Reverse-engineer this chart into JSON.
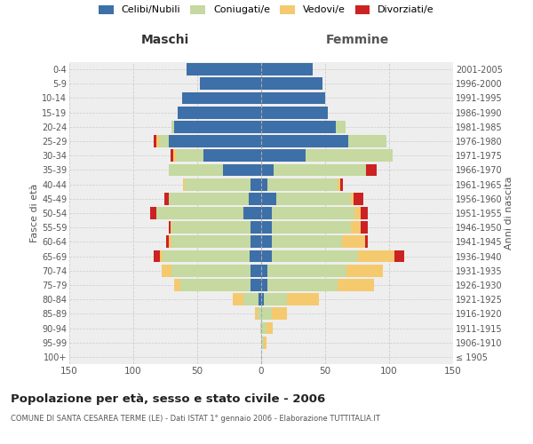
{
  "age_groups": [
    "100+",
    "95-99",
    "90-94",
    "85-89",
    "80-84",
    "75-79",
    "70-74",
    "65-69",
    "60-64",
    "55-59",
    "50-54",
    "45-49",
    "40-44",
    "35-39",
    "30-34",
    "25-29",
    "20-24",
    "15-19",
    "10-14",
    "5-9",
    "0-4"
  ],
  "birth_years": [
    "≤ 1905",
    "1906-1910",
    "1911-1915",
    "1916-1920",
    "1921-1925",
    "1926-1930",
    "1931-1935",
    "1936-1940",
    "1941-1945",
    "1946-1950",
    "1951-1955",
    "1956-1960",
    "1961-1965",
    "1966-1970",
    "1971-1975",
    "1976-1980",
    "1981-1985",
    "1986-1990",
    "1991-1995",
    "1996-2000",
    "2001-2005"
  ],
  "maschi": {
    "celibi": [
      0,
      0,
      0,
      0,
      2,
      8,
      8,
      9,
      8,
      8,
      14,
      10,
      8,
      30,
      45,
      72,
      68,
      65,
      62,
      48,
      58
    ],
    "coniugati": [
      0,
      0,
      1,
      3,
      12,
      55,
      62,
      68,
      62,
      62,
      68,
      62,
      52,
      42,
      22,
      8,
      2,
      0,
      0,
      0,
      0
    ],
    "vedovi": [
      0,
      0,
      0,
      2,
      8,
      5,
      8,
      2,
      2,
      1,
      0,
      0,
      1,
      0,
      2,
      2,
      0,
      0,
      0,
      0,
      0
    ],
    "divorziati": [
      0,
      0,
      0,
      0,
      0,
      0,
      0,
      5,
      2,
      1,
      5,
      4,
      0,
      0,
      2,
      2,
      0,
      0,
      0,
      0,
      0
    ]
  },
  "femmine": {
    "nubili": [
      0,
      0,
      0,
      0,
      2,
      5,
      5,
      8,
      8,
      8,
      8,
      12,
      5,
      10,
      35,
      68,
      58,
      52,
      50,
      48,
      40
    ],
    "coniugate": [
      0,
      2,
      4,
      8,
      18,
      55,
      62,
      68,
      55,
      62,
      65,
      58,
      55,
      72,
      68,
      30,
      8,
      0,
      0,
      0,
      0
    ],
    "vedove": [
      0,
      2,
      5,
      12,
      25,
      28,
      28,
      28,
      18,
      8,
      5,
      2,
      2,
      0,
      0,
      0,
      0,
      0,
      0,
      0,
      0
    ],
    "divorziate": [
      0,
      0,
      0,
      0,
      0,
      0,
      0,
      8,
      2,
      5,
      5,
      8,
      2,
      8,
      0,
      0,
      0,
      0,
      0,
      0,
      0
    ]
  },
  "color_celibi": "#3d6fa8",
  "color_coniugati": "#c5d9a0",
  "color_vedovi": "#f5c96e",
  "color_divorziati": "#cc2222",
  "title": "Popolazione per età, sesso e stato civile - 2006",
  "subtitle": "COMUNE DI SANTA CESAREA TERME (LE) - Dati ISTAT 1° gennaio 2006 - Elaborazione TUTTITALIA.IT",
  "xlabel_left": "Maschi",
  "xlabel_right": "Femmine",
  "ylabel_left": "Fasce di età",
  "ylabel_right": "Anni di nascita",
  "xlim": 150,
  "bg_color": "#ffffff",
  "plot_bg_color": "#eeeeee",
  "grid_color": "#cccccc"
}
